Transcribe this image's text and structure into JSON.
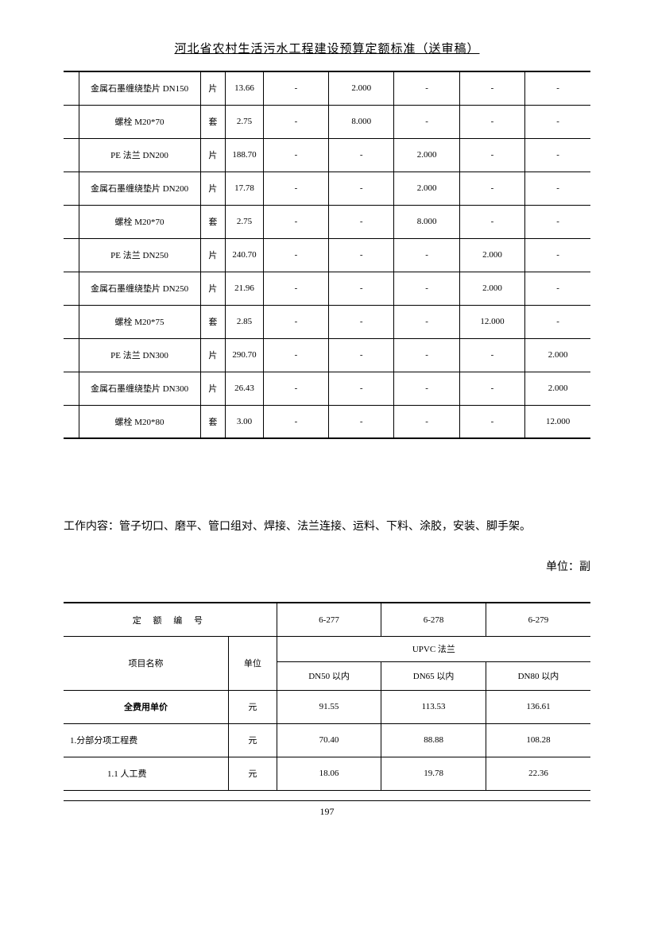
{
  "page_title": "河北省农村生活污水工程建设预算定额标准（送审稿）",
  "page_number": "197",
  "table1": {
    "rows": [
      {
        "name": "金属石墨缠绕垫片 DN150",
        "unit": "片",
        "price": "13.66",
        "v1": "-",
        "v2": "2.000",
        "v3": "-",
        "v4": "-",
        "v5": "-"
      },
      {
        "name": "螺栓 M20*70",
        "unit": "套",
        "price": "2.75",
        "v1": "-",
        "v2": "8.000",
        "v3": "-",
        "v4": "-",
        "v5": "-"
      },
      {
        "name": "PE 法兰 DN200",
        "unit": "片",
        "price": "188.70",
        "v1": "-",
        "v2": "-",
        "v3": "2.000",
        "v4": "-",
        "v5": "-"
      },
      {
        "name": "金属石墨缠绕垫片 DN200",
        "unit": "片",
        "price": "17.78",
        "v1": "-",
        "v2": "-",
        "v3": "2.000",
        "v4": "-",
        "v5": "-"
      },
      {
        "name": "螺栓 M20*70",
        "unit": "套",
        "price": "2.75",
        "v1": "-",
        "v2": "-",
        "v3": "8.000",
        "v4": "-",
        "v5": "-"
      },
      {
        "name": "PE 法兰 DN250",
        "unit": "片",
        "price": "240.70",
        "v1": "-",
        "v2": "-",
        "v3": "-",
        "v4": "2.000",
        "v5": "-"
      },
      {
        "name": "金属石墨缠绕垫片 DN250",
        "unit": "片",
        "price": "21.96",
        "v1": "-",
        "v2": "-",
        "v3": "-",
        "v4": "2.000",
        "v5": "-"
      },
      {
        "name": "螺栓 M20*75",
        "unit": "套",
        "price": "2.85",
        "v1": "-",
        "v2": "-",
        "v3": "-",
        "v4": "12.000",
        "v5": "-"
      },
      {
        "name": "PE 法兰 DN300",
        "unit": "片",
        "price": "290.70",
        "v1": "-",
        "v2": "-",
        "v3": "-",
        "v4": "-",
        "v5": "2.000"
      },
      {
        "name": "金属石墨缠绕垫片 DN300",
        "unit": "片",
        "price": "26.43",
        "v1": "-",
        "v2": "-",
        "v3": "-",
        "v4": "-",
        "v5": "2.000"
      },
      {
        "name": "螺栓 M20*80",
        "unit": "套",
        "price": "3.00",
        "v1": "-",
        "v2": "-",
        "v3": "-",
        "v4": "-",
        "v5": "12.000"
      }
    ]
  },
  "work_content": "工作内容：管子切口、磨平、管口组对、焊接、法兰连接、运料、下料、涂胶，安装、脚手架。",
  "unit_label": "单位：副",
  "table2": {
    "code_label": "定 额 编 号",
    "codes": [
      "6-277",
      "6-278",
      "6-279"
    ],
    "project_label": "项目名称",
    "unit_label": "单位",
    "group_label": "UPVC 法兰",
    "subcols": [
      "DN50 以内",
      "DN65 以内",
      "DN80 以内"
    ],
    "rows": [
      {
        "name": "全费用单价",
        "unit": "元",
        "v1": "91.55",
        "v2": "113.53",
        "v3": "136.61",
        "bold": true,
        "align": "center"
      },
      {
        "name": "1.分部分项工程费",
        "unit": "元",
        "v1": "70.40",
        "v2": "88.88",
        "v3": "108.28",
        "bold": false,
        "align": "left"
      },
      {
        "name": "1.1 人工费",
        "unit": "元",
        "v1": "18.06",
        "v2": "19.78",
        "v3": "22.36",
        "bold": false,
        "align": "indent"
      }
    ]
  },
  "colors": {
    "text": "#000000",
    "bg": "#ffffff",
    "border": "#000000"
  }
}
